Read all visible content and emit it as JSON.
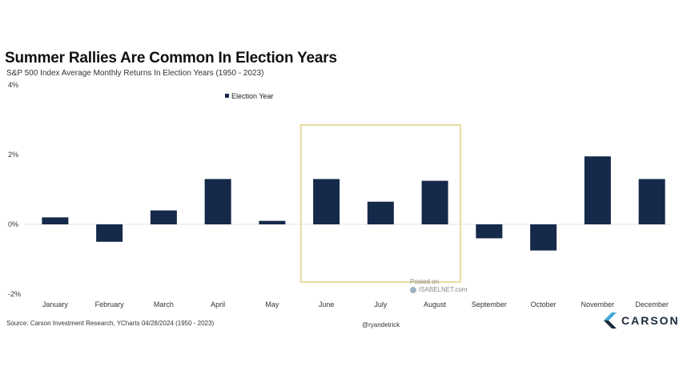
{
  "chart_data": {
    "type": "bar",
    "title": "Summer Rallies Are Common In Election Years",
    "subtitle": "S&P 500 Index Average Monthly Returns In Election Years (1950 - 2023)",
    "categories": [
      "January",
      "February",
      "March",
      "April",
      "May",
      "June",
      "July",
      "August",
      "September",
      "October",
      "November",
      "December"
    ],
    "series": [
      {
        "name": "Election Year",
        "values": [
          0.2,
          -0.5,
          0.4,
          1.3,
          0.1,
          1.3,
          0.65,
          1.25,
          -0.4,
          -0.75,
          1.95,
          1.3
        ]
      }
    ],
    "yticks": [
      "4%",
      "2%",
      "0%",
      "-2%"
    ],
    "ylim": [
      -2,
      4
    ],
    "legend_position": "top-center",
    "grid": false,
    "highlight": {
      "from": "June",
      "to": "August"
    },
    "colors": {
      "bar": "#15294a",
      "highlight_border": "#e6dca0",
      "zero_line": "#e3e3e3"
    }
  },
  "footer": {
    "source": "Source: Carson Investment Research, YCharts 04/28/2024 (1950 - 2023)",
    "handle": "@ryandetrick",
    "watermark_line1": "Posted on",
    "watermark_line2": "ISABELNET.com",
    "brand": "CARSON"
  }
}
